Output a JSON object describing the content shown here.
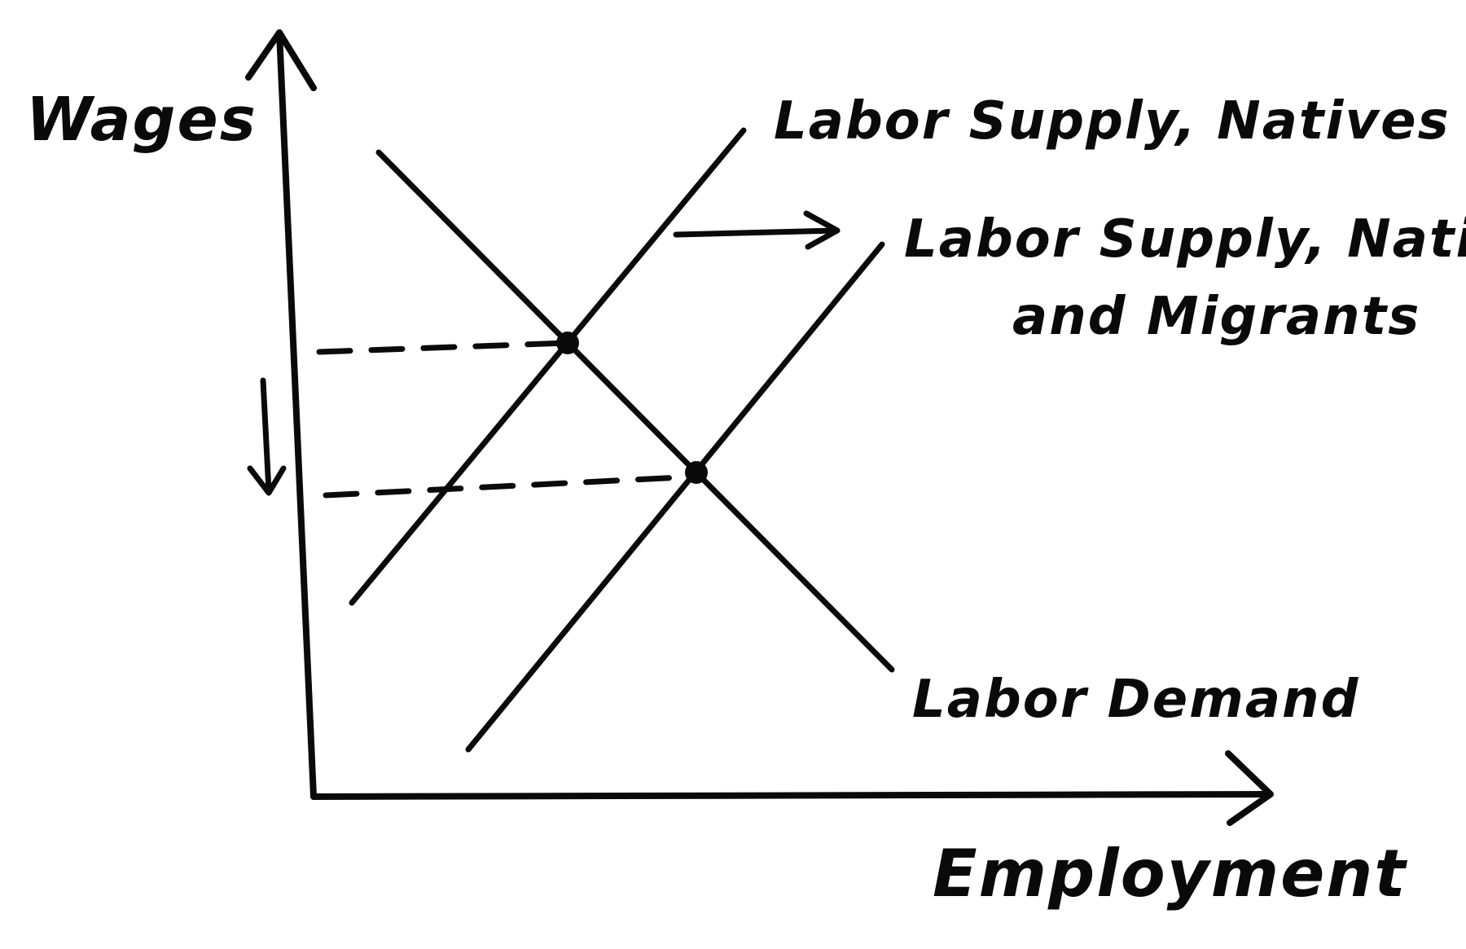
{
  "labels": {
    "y_axis": "Wages",
    "x_axis": "Employment",
    "supply_natives": "Labor Supply, Natives Only",
    "supply_migrants_line1": "Labor Supply, Natives",
    "supply_migrants_line2": "and Migrants",
    "demand": "Labor Demand"
  },
  "colors": {
    "ink": "#0a0a0a",
    "background": "#ffffff"
  },
  "icons": {
    "shift_arrow": "right-arrow-icon",
    "wage_arrow": "down-arrow-icon"
  }
}
